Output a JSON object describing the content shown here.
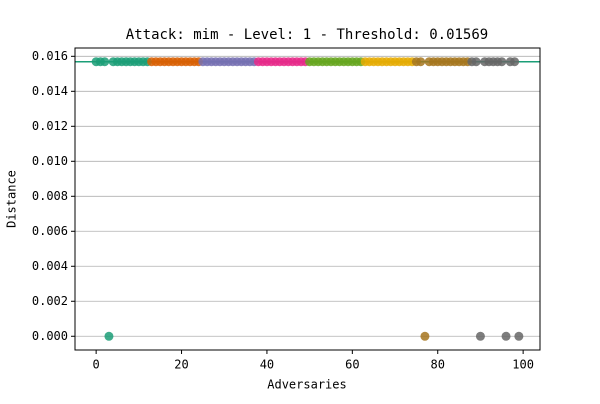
{
  "chart_data": {
    "type": "scatter",
    "title": "Attack: mim - Level: 1 - Threshold: 0.01569",
    "xlabel": "Adversaries",
    "ylabel": "Distance",
    "xlim": [
      -4.95,
      103.95
    ],
    "xticks": [
      0,
      20,
      40,
      60,
      80,
      100
    ],
    "ylim": [
      -0.000785,
      0.016475
    ],
    "yticks": [
      {
        "value": 0,
        "label": "0.000"
      },
      {
        "value": 0.002,
        "label": "0.002"
      },
      {
        "value": 0.004,
        "label": "0.004"
      },
      {
        "value": 0.006,
        "label": "0.006"
      },
      {
        "value": 0.008,
        "label": "0.008"
      },
      {
        "value": 0.01,
        "label": "0.010"
      },
      {
        "value": 0.012,
        "label": "0.012"
      },
      {
        "value": 0.014,
        "label": "0.014"
      },
      {
        "value": 0.016,
        "label": "0.016"
      }
    ],
    "grid": "y",
    "threshold_line": {
      "value": 0.01569,
      "color": "#1b9e77"
    },
    "series": [
      {
        "color": "#1b9e77",
        "x": [
          0,
          1,
          2,
          3,
          4,
          5,
          6,
          7,
          8,
          9,
          10,
          11,
          12
        ],
        "values": [
          0.01569,
          0.01569,
          0.01569,
          0,
          0.01569,
          0.01569,
          0.01569,
          0.01569,
          0.01569,
          0.01569,
          0.01569,
          0.01569,
          0.01569
        ]
      },
      {
        "color": "#d95f02",
        "x": [
          13,
          14,
          15,
          16,
          17,
          18,
          19,
          20,
          21,
          22,
          23,
          24
        ],
        "values": [
          0.01569,
          0.01569,
          0.01569,
          0.01569,
          0.01569,
          0.01569,
          0.01569,
          0.01569,
          0.01569,
          0.01569,
          0.01569,
          0.01569
        ]
      },
      {
        "color": "#7570b3",
        "x": [
          25,
          26,
          27,
          28,
          29,
          30,
          31,
          32,
          33,
          34,
          35,
          36,
          37
        ],
        "values": [
          0.01569,
          0.01569,
          0.01569,
          0.01569,
          0.01569,
          0.01569,
          0.01569,
          0.01569,
          0.01569,
          0.01569,
          0.01569,
          0.01569,
          0.01569
        ]
      },
      {
        "color": "#e7298a",
        "x": [
          38,
          39,
          40,
          41,
          42,
          43,
          44,
          45,
          46,
          47,
          48,
          49
        ],
        "values": [
          0.01569,
          0.01569,
          0.01569,
          0.01569,
          0.01569,
          0.01569,
          0.01569,
          0.01569,
          0.01569,
          0.01569,
          0.01569,
          0.01569
        ]
      },
      {
        "color": "#66a61e",
        "x": [
          50,
          51,
          52,
          53,
          54,
          55,
          56,
          57,
          58,
          59,
          60,
          61,
          62
        ],
        "values": [
          0.01569,
          0.01569,
          0.01569,
          0.01569,
          0.01569,
          0.01569,
          0.01569,
          0.01569,
          0.01569,
          0.01569,
          0.01569,
          0.01569,
          0.01569
        ]
      },
      {
        "color": "#e6ab02",
        "x": [
          63,
          64,
          65,
          66,
          67,
          68,
          69,
          70,
          71,
          72,
          73,
          74
        ],
        "values": [
          0.01569,
          0.01569,
          0.01569,
          0.01569,
          0.01569,
          0.01569,
          0.01569,
          0.01569,
          0.01569,
          0.01569,
          0.01569,
          0.01569
        ]
      },
      {
        "color": "#a6761d",
        "x": [
          75,
          76,
          77,
          78,
          79,
          80,
          81,
          82,
          83,
          84,
          85,
          86,
          87
        ],
        "values": [
          0.01569,
          0.01569,
          0,
          0.01569,
          0.01569,
          0.01569,
          0.01569,
          0.01569,
          0.01569,
          0.01569,
          0.01569,
          0.01569,
          0.01569
        ]
      },
      {
        "color": "#666666",
        "x": [
          88,
          89,
          90,
          91,
          92,
          93,
          94,
          95,
          96,
          97,
          98,
          99
        ],
        "values": [
          0.01569,
          0.01569,
          0,
          0.01569,
          0.01569,
          0.01569,
          0.01569,
          0.01569,
          0,
          0.01569,
          0.01569,
          0
        ]
      }
    ]
  }
}
